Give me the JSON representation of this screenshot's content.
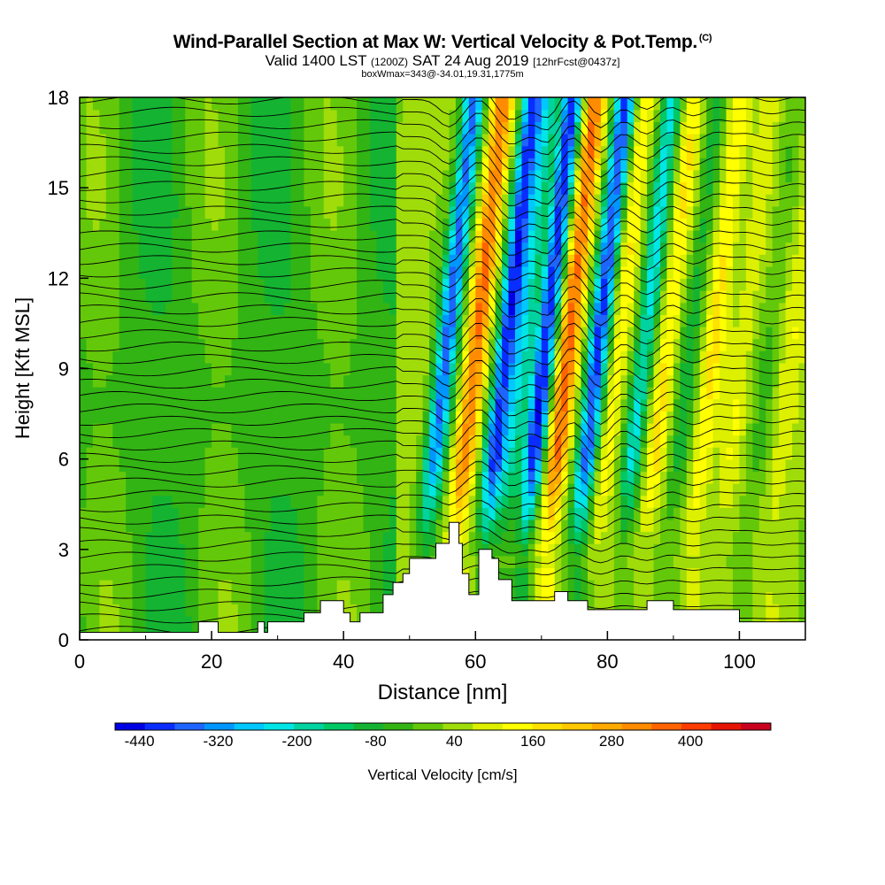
{
  "header": {
    "title": "Wind-Parallel Section at Max W: Vertical Velocity & Pot.Temp.",
    "copyright": "(C)",
    "valid_prefix": "Valid 1400 LST",
    "valid_z": "(1200Z)",
    "valid_date": "SAT 24 Aug 2019",
    "forecast": "[12hrFcst@0437z]",
    "box_info": "boxWmax=343@-34.01,19.31,1775m"
  },
  "chart_data": {
    "type": "heatmap",
    "xlabel": "Distance [nm]",
    "ylabel": "Height [Kft MSL]",
    "xlim": [
      0,
      110
    ],
    "ylim": [
      0,
      18
    ],
    "x_ticks": [
      0,
      20,
      40,
      60,
      80,
      100
    ],
    "y_ticks": [
      0,
      3,
      6,
      9,
      12,
      15,
      18
    ],
    "colorbar": {
      "label": "Vertical Velocity [cm/s]",
      "tick_labels": [
        "-440",
        "-320",
        "-200",
        "-80",
        "40",
        "160",
        "280",
        "400"
      ],
      "tick_values": [
        -440,
        -320,
        -200,
        -80,
        40,
        160,
        280,
        400
      ],
      "range": [
        -500,
        500
      ],
      "colors": [
        "#0000e6",
        "#0a2dff",
        "#1e64ff",
        "#0096ff",
        "#00c8ff",
        "#00e6e6",
        "#00d2a0",
        "#00c864",
        "#14b432",
        "#32b414",
        "#64c80a",
        "#a0dc0a",
        "#dcf000",
        "#ffff00",
        "#ffe100",
        "#ffc800",
        "#ffaa00",
        "#ff8c00",
        "#ff6400",
        "#ff3c00",
        "#e61400",
        "#c8001e"
      ]
    },
    "waves": [
      {
        "x": 54.5,
        "w": -380
      },
      {
        "x": 59.0,
        "w": 300
      },
      {
        "x": 63.5,
        "w": -440
      },
      {
        "x": 66.0,
        "w": -200
      },
      {
        "x": 69.5,
        "w": -460
      },
      {
        "x": 73.0,
        "w": 320
      },
      {
        "x": 77.5,
        "w": -420
      },
      {
        "x": 80.5,
        "w": 120
      },
      {
        "x": 84.5,
        "w": -260
      },
      {
        "x": 88.0,
        "w": 140
      },
      {
        "x": 91.5,
        "w": -120
      },
      {
        "x": 95.0,
        "w": 120
      },
      {
        "x": 99.5,
        "w": 80
      },
      {
        "x": 103.5,
        "w": -60
      },
      {
        "x": 107.0,
        "w": 60
      }
    ],
    "terrain": [
      [
        0,
        0.25
      ],
      [
        18,
        0.25
      ],
      [
        18,
        0.6
      ],
      [
        21,
        0.6
      ],
      [
        21,
        0.25
      ],
      [
        27,
        0.25
      ],
      [
        27,
        0.6
      ],
      [
        28,
        0.6
      ],
      [
        28,
        0.25
      ],
      [
        28.5,
        0.25
      ],
      [
        28.5,
        0.6
      ],
      [
        34,
        0.6
      ],
      [
        34,
        0.9
      ],
      [
        36.5,
        0.9
      ],
      [
        36.5,
        1.3
      ],
      [
        40,
        1.3
      ],
      [
        40,
        0.9
      ],
      [
        41,
        0.9
      ],
      [
        41,
        0.6
      ],
      [
        42.5,
        0.6
      ],
      [
        42.5,
        0.9
      ],
      [
        46,
        0.9
      ],
      [
        46,
        1.5
      ],
      [
        47.5,
        1.5
      ],
      [
        47.5,
        1.9
      ],
      [
        49,
        1.9
      ],
      [
        49,
        2.2
      ],
      [
        50,
        2.2
      ],
      [
        50,
        2.7
      ],
      [
        54,
        2.7
      ],
      [
        54,
        3.2
      ],
      [
        56,
        3.2
      ],
      [
        56,
        3.9
      ],
      [
        57.5,
        3.9
      ],
      [
        57.5,
        3.2
      ],
      [
        58,
        3.2
      ],
      [
        58,
        2.2
      ],
      [
        59,
        2.2
      ],
      [
        59,
        1.5
      ],
      [
        60.5,
        1.5
      ],
      [
        60.5,
        3.0
      ],
      [
        62.5,
        3.0
      ],
      [
        62.5,
        2.7
      ],
      [
        63.5,
        2.7
      ],
      [
        63.5,
        2.0
      ],
      [
        65.5,
        2.0
      ],
      [
        65.5,
        1.3
      ],
      [
        72,
        1.3
      ],
      [
        72,
        1.6
      ],
      [
        74,
        1.6
      ],
      [
        74,
        1.3
      ],
      [
        77,
        1.3
      ],
      [
        77,
        1.0
      ],
      [
        86,
        1.0
      ],
      [
        86,
        1.3
      ],
      [
        90,
        1.3
      ],
      [
        90,
        1.0
      ],
      [
        100,
        1.0
      ],
      [
        100,
        0.6
      ],
      [
        110,
        0.6
      ],
      [
        110,
        0.25
      ],
      [
        110,
        0
      ]
    ]
  }
}
